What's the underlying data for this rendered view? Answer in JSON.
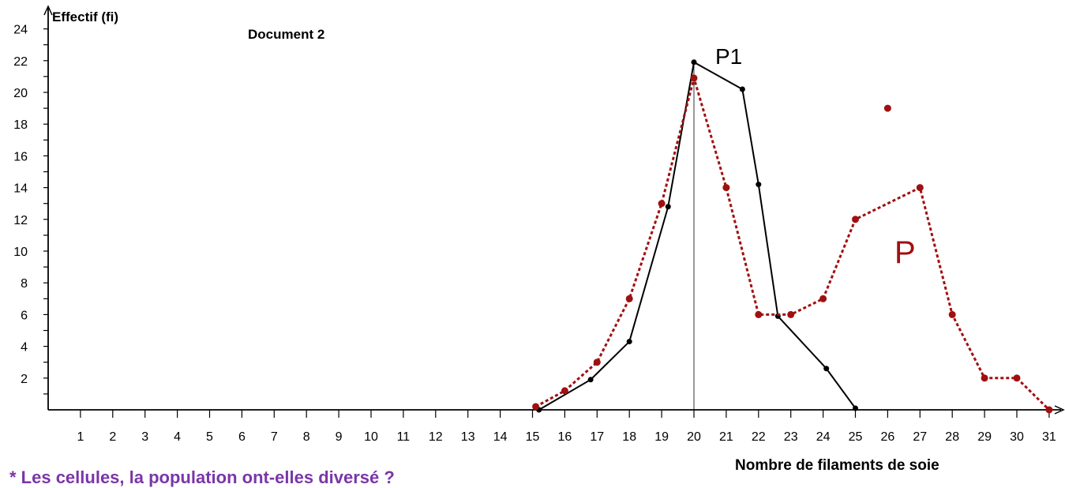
{
  "labels": {
    "y_axis": "Effectif (fi)",
    "document": "Document 2",
    "x_axis": "Nombre de filaments de soie",
    "question": "* Les cellules, la population ont-elles diversé ?"
  },
  "chart_data": {
    "type": "line",
    "xlabel": "Nombre de filaments de soie",
    "ylabel": "Effectif (fi)",
    "xlim": [
      0,
      31
    ],
    "ylim": [
      0,
      24
    ],
    "x_ticks": [
      "1",
      "2",
      "3",
      "4",
      "5",
      "6",
      "7",
      "8",
      "9",
      "10",
      "11",
      "12",
      "13",
      "14",
      "15",
      "16",
      "17",
      "18",
      "19",
      "20",
      "21",
      "22",
      "23",
      "24",
      "25",
      "26",
      "27",
      "28",
      "29",
      "30",
      "31"
    ],
    "y_ticks": [
      "2",
      "4",
      "6",
      "8",
      "10",
      "12",
      "14",
      "16",
      "18",
      "20",
      "22",
      "24"
    ],
    "series": [
      {
        "name": "P1",
        "style": "solid",
        "color": "#000000",
        "points": [
          [
            15.2,
            0
          ],
          [
            16.8,
            1.9
          ],
          [
            18,
            4.3
          ],
          [
            19.2,
            12.8
          ],
          [
            20,
            21.9
          ],
          [
            21.5,
            20.2
          ],
          [
            22,
            14.2
          ],
          [
            22.6,
            5.9
          ],
          [
            24.1,
            2.6
          ],
          [
            25,
            0.1
          ]
        ]
      },
      {
        "name": "P",
        "style": "dotted",
        "color": "#a01010",
        "points": [
          [
            15.1,
            0.2
          ],
          [
            16,
            1.2
          ],
          [
            17,
            3
          ],
          [
            18,
            7
          ],
          [
            19,
            13
          ],
          [
            20,
            20.9
          ],
          [
            21,
            14
          ],
          [
            22,
            6
          ],
          [
            23,
            6
          ],
          [
            24,
            7
          ],
          [
            25,
            12
          ],
          [
            27,
            14
          ],
          [
            28,
            6
          ],
          [
            29,
            2
          ],
          [
            30,
            2
          ],
          [
            31,
            0
          ]
        ],
        "extra_points": [
          [
            26,
            19
          ]
        ]
      }
    ],
    "reference_line_x": 20,
    "grid": false,
    "legend": "none"
  }
}
